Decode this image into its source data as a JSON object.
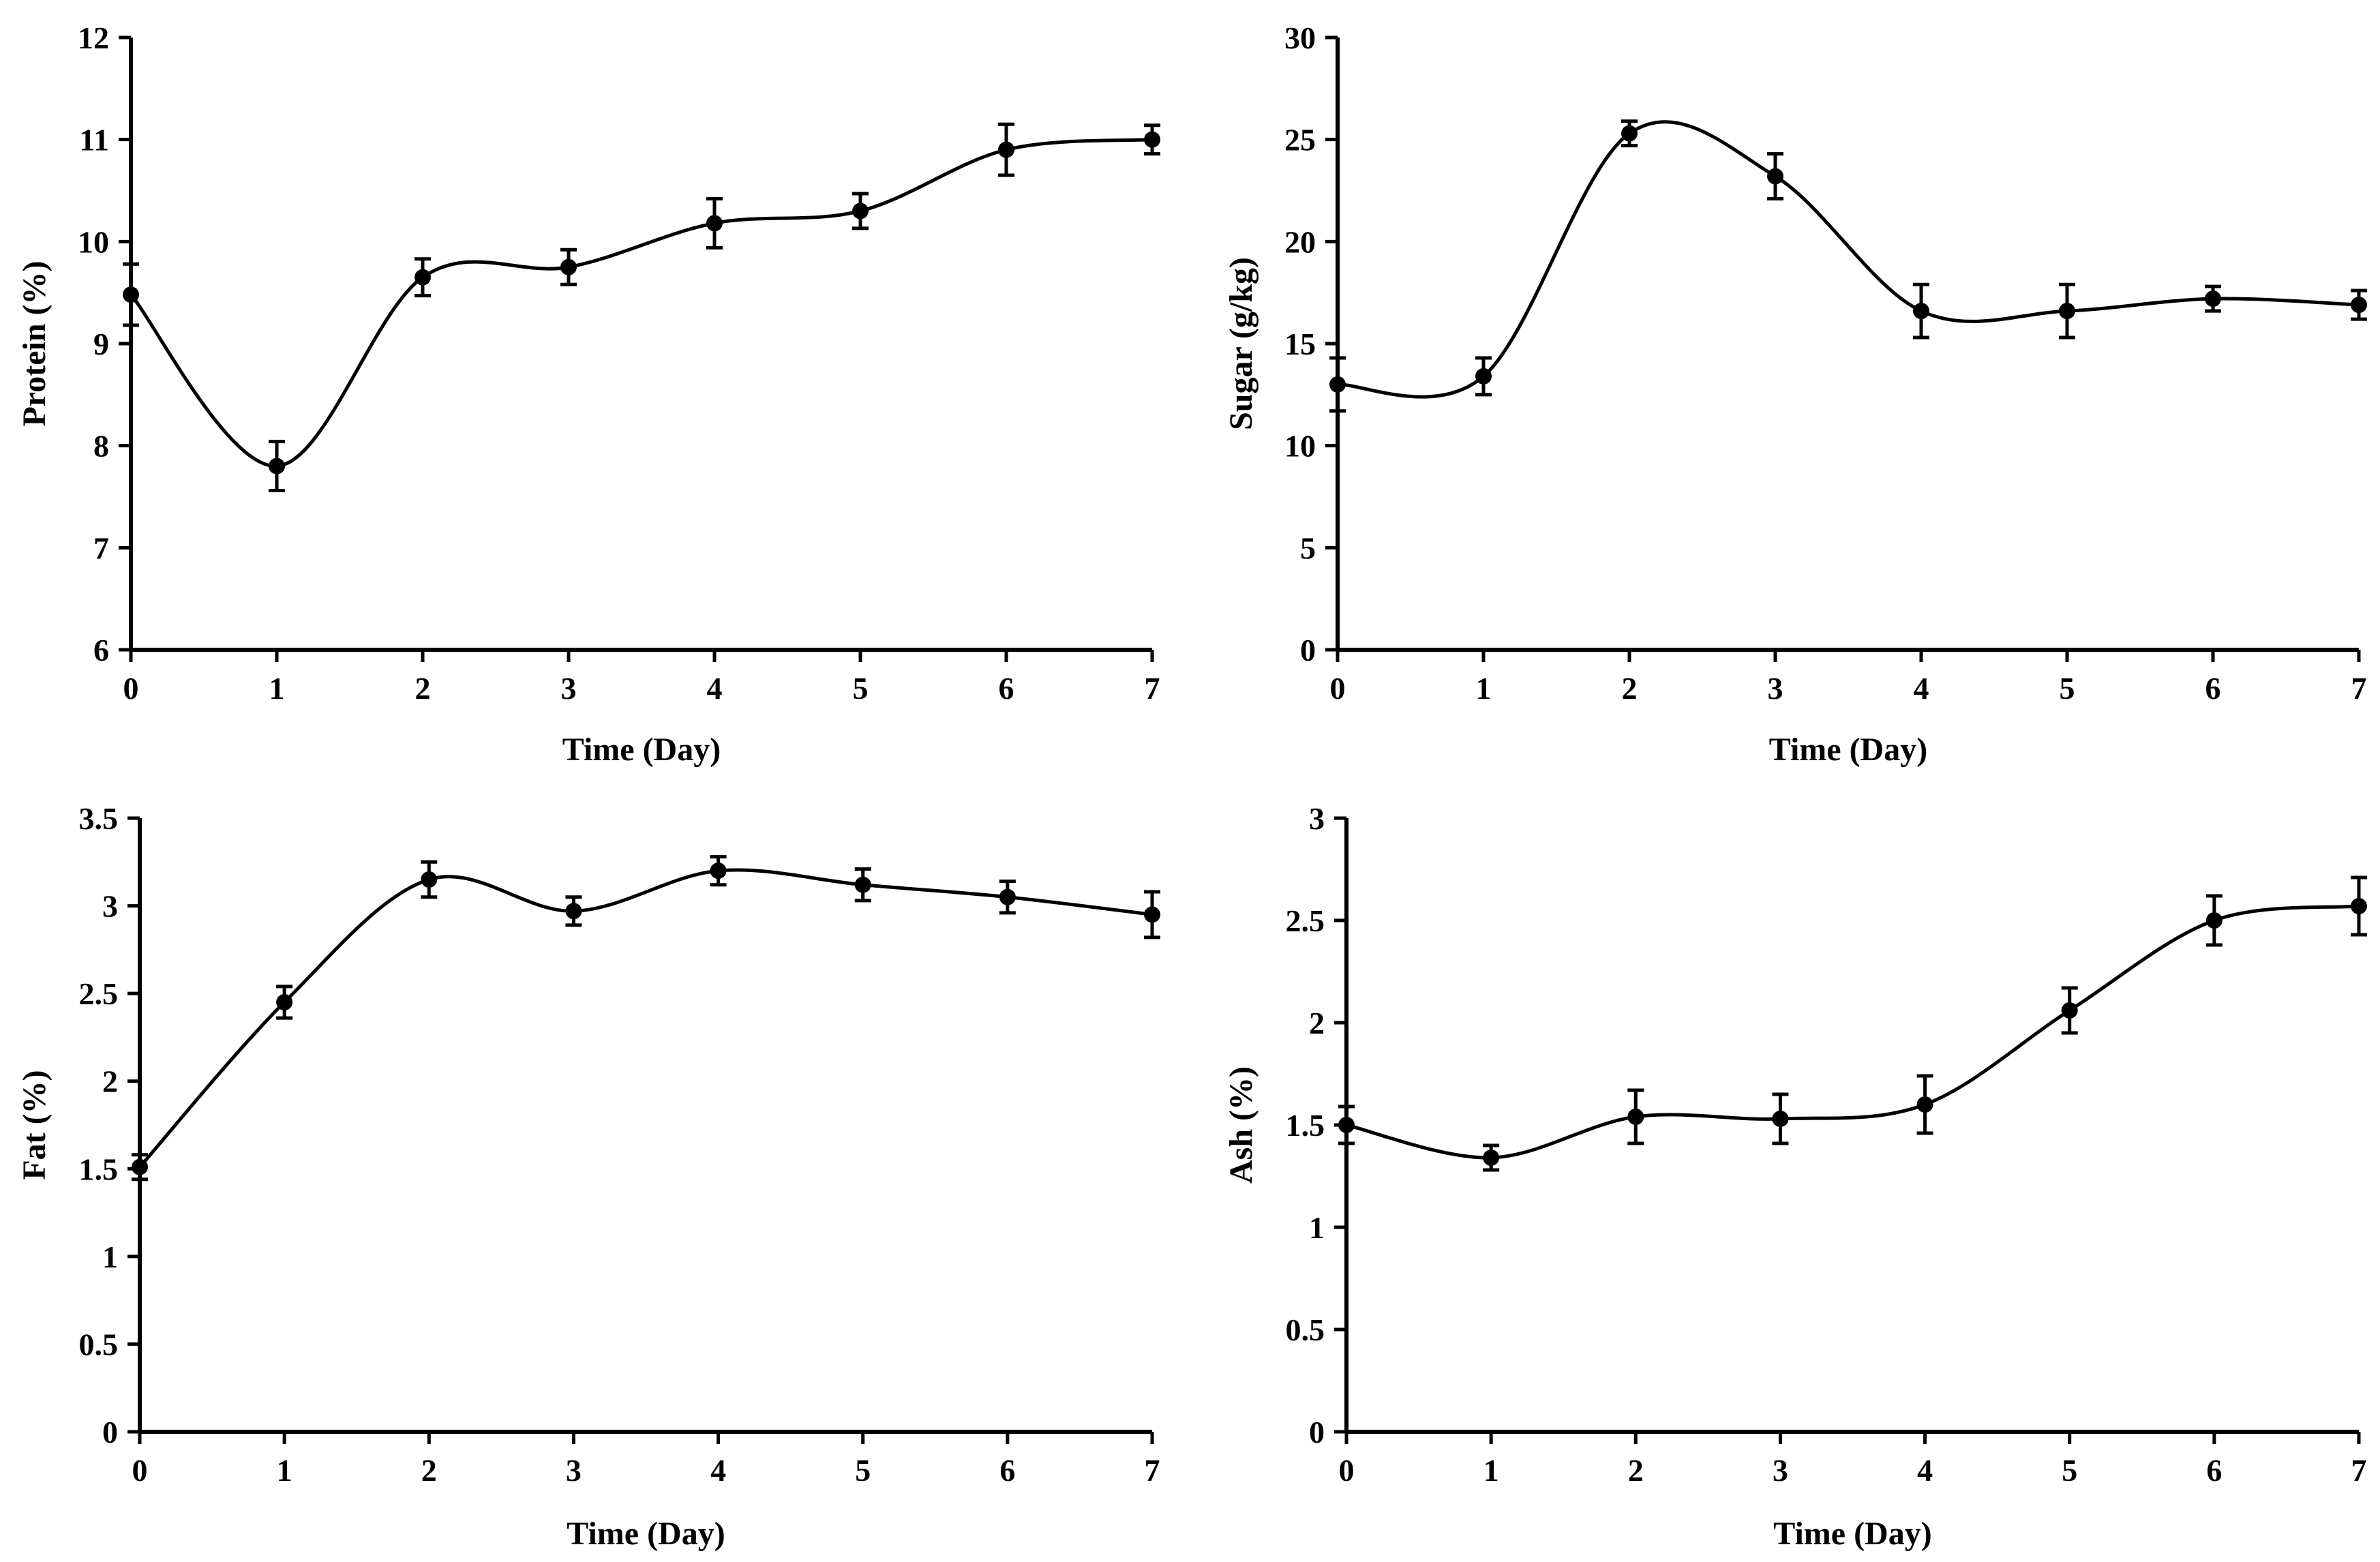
{
  "chart_data": [
    {
      "type": "line",
      "x": [
        0,
        1,
        2,
        3,
        4,
        5,
        6,
        7
      ],
      "series": [
        {
          "values": [
            9.48,
            7.8,
            9.65,
            9.75,
            10.18,
            10.3,
            10.9,
            11.0
          ],
          "errors": [
            0.3,
            0.24,
            0.18,
            0.17,
            0.24,
            0.17,
            0.25,
            0.14
          ]
        }
      ],
      "xlabel": "Time (Day)",
      "ylabel": "Protein  (%)",
      "xlim": [
        0,
        7
      ],
      "ylim": [
        6,
        12
      ],
      "x_ticks": [
        "0",
        "1",
        "2",
        "3",
        "4",
        "5",
        "6",
        "7"
      ],
      "y_ticks": [
        "6",
        "7",
        "8",
        "9",
        "10",
        "11",
        "12"
      ],
      "grid": false,
      "line_color": "#000000"
    },
    {
      "type": "line",
      "x": [
        0,
        1,
        2,
        3,
        4,
        5,
        6,
        7
      ],
      "series": [
        {
          "values": [
            13.0,
            13.4,
            25.3,
            23.2,
            16.6,
            16.6,
            17.2,
            16.9
          ],
          "errors": [
            1.3,
            0.9,
            0.6,
            1.1,
            1.3,
            1.3,
            0.6,
            0.7
          ]
        }
      ],
      "xlabel": "Time (Day)",
      "ylabel": "Sugar (g/kg)",
      "xlim": [
        0,
        7
      ],
      "ylim": [
        0,
        30
      ],
      "x_ticks": [
        "0",
        "1",
        "2",
        "3",
        "4",
        "5",
        "6",
        "7"
      ],
      "y_ticks": [
        "0",
        "5",
        "10",
        "15",
        "20",
        "25",
        "30"
      ],
      "grid": false,
      "line_color": "#000000"
    },
    {
      "type": "line",
      "x": [
        0,
        1,
        2,
        3,
        4,
        5,
        6,
        7
      ],
      "series": [
        {
          "values": [
            1.51,
            2.45,
            3.15,
            2.97,
            3.2,
            3.12,
            3.05,
            2.95
          ],
          "errors": [
            0.07,
            0.09,
            0.1,
            0.08,
            0.08,
            0.09,
            0.09,
            0.13
          ]
        }
      ],
      "xlabel": "Time (Day)",
      "ylabel": "Fat (%)",
      "xlim": [
        0,
        7
      ],
      "ylim": [
        0,
        3.5
      ],
      "x_ticks": [
        "0",
        "1",
        "2",
        "3",
        "4",
        "5",
        "6",
        "7"
      ],
      "y_ticks": [
        "0",
        "0.5",
        "1",
        "1.5",
        "2",
        "2.5",
        "3",
        "3.5"
      ],
      "grid": false,
      "line_color": "#000000"
    },
    {
      "type": "line",
      "x": [
        0,
        1,
        2,
        3,
        4,
        5,
        6,
        7
      ],
      "series": [
        {
          "values": [
            1.5,
            1.34,
            1.54,
            1.53,
            1.6,
            2.06,
            2.5,
            2.57
          ],
          "errors": [
            0.09,
            0.06,
            0.13,
            0.12,
            0.14,
            0.11,
            0.12,
            0.14
          ]
        }
      ],
      "xlabel": "Time (Day)",
      "ylabel": "Ash (%)",
      "xlim": [
        0,
        7
      ],
      "ylim": [
        0,
        3
      ],
      "x_ticks": [
        "0",
        "1",
        "2",
        "3",
        "4",
        "5",
        "6",
        "7"
      ],
      "y_ticks": [
        "0",
        "0.5",
        "1",
        "1.5",
        "2",
        "2.5",
        "3"
      ],
      "grid": false,
      "line_color": "#000000"
    }
  ]
}
